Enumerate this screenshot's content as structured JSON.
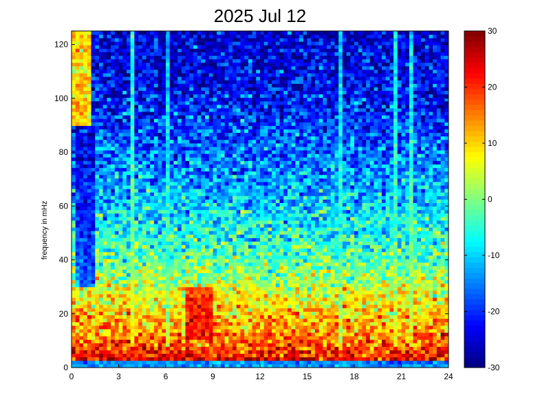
{
  "chart_data": {
    "type": "heatmap",
    "title": "2025 Jul 12",
    "xlabel": "",
    "ylabel": "frequency in mHz",
    "xlim": [
      0,
      24
    ],
    "ylim": [
      0,
      125
    ],
    "x_ticks": [
      0,
      3,
      6,
      9,
      12,
      15,
      18,
      21,
      24
    ],
    "y_ticks": [
      0,
      20,
      40,
      60,
      80,
      100,
      120
    ],
    "colorbar": {
      "colormap": "jet",
      "clim": [
        -30,
        30
      ],
      "ticks": [
        -30,
        -20,
        -10,
        0,
        10,
        20,
        30
      ]
    },
    "grid": "off",
    "time_bins": 96,
    "freq_bins": 96,
    "level_profile": {
      "freq_mhz": [
        0,
        1,
        2,
        4,
        8,
        15,
        25,
        40,
        60,
        80,
        100,
        125
      ],
      "level": [
        -18,
        12,
        27,
        22,
        18,
        13,
        8,
        -2,
        -10,
        -16,
        -22,
        -25
      ]
    },
    "features": [
      {
        "kind": "low-band",
        "freq_range_mhz": [
          0,
          2
        ],
        "level": -14
      },
      {
        "kind": "bright-column",
        "time_range_h": [
          0.0,
          1.3
        ],
        "freq_range_mhz": [
          90,
          125
        ],
        "level": 28
      },
      {
        "kind": "dark-column",
        "time_range_h": [
          0.2,
          1.4
        ],
        "freq_range_mhz": [
          30,
          90
        ],
        "level": -27
      },
      {
        "kind": "dark-column",
        "time_range_h": [
          5.6,
          6.6
        ],
        "freq_range_mhz": [
          100,
          125
        ],
        "level": -27
      },
      {
        "kind": "vertical-stripe",
        "time_h": 3.8,
        "level": 3
      },
      {
        "kind": "vertical-stripe",
        "time_h": 6.2,
        "level": -3
      },
      {
        "kind": "vertical-stripe",
        "time_h": 17.2,
        "level": -3
      },
      {
        "kind": "vertical-stripe",
        "time_h": 20.6,
        "level": 0
      },
      {
        "kind": "vertical-stripe",
        "time_h": 21.6,
        "level": 1
      },
      {
        "kind": "hot-spot",
        "time_range_h": [
          7.2,
          9.0
        ],
        "freq_range_mhz": [
          10,
          30
        ],
        "level": 26
      }
    ]
  }
}
